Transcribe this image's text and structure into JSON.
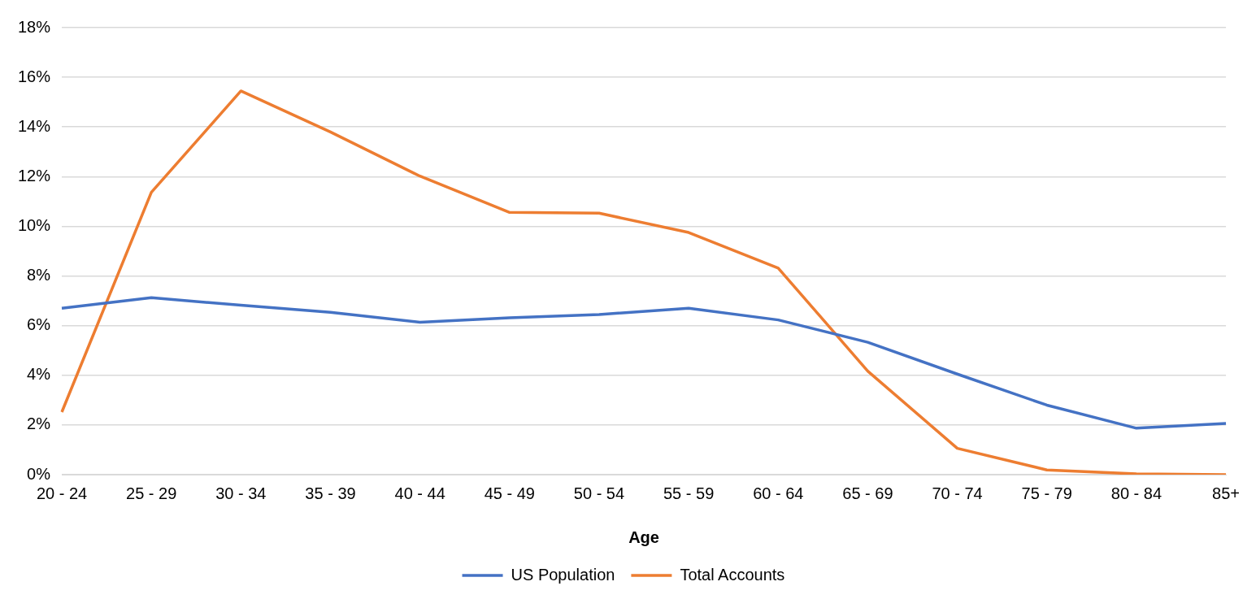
{
  "chart_data": {
    "type": "line",
    "xlabel": "Age",
    "categories": [
      "20 - 24",
      "25 - 29",
      "30 - 34",
      "35 - 39",
      "40 - 44",
      "45 - 49",
      "50 - 54",
      "55 - 59",
      "60 - 64",
      "65 - 69",
      "70 - 74",
      "75 - 79",
      "80 - 84",
      "85+"
    ],
    "series": [
      {
        "name": "US Population",
        "color": "#4472c4",
        "values": [
          6.7,
          7.13,
          6.82,
          6.54,
          6.14,
          6.32,
          6.45,
          6.7,
          6.23,
          5.33,
          4.05,
          2.8,
          1.87,
          2.06
        ]
      },
      {
        "name": "Total Accounts",
        "color": "#ed7d31",
        "values": [
          2.52,
          11.37,
          15.45,
          13.8,
          12.02,
          10.56,
          10.53,
          9.75,
          8.32,
          4.17,
          1.06,
          0.19,
          0.03,
          0.0
        ]
      }
    ],
    "ylim": [
      0,
      18
    ],
    "yticks": [
      {
        "value": 0,
        "label": "0%"
      },
      {
        "value": 2,
        "label": "2%"
      },
      {
        "value": 4,
        "label": "4%"
      },
      {
        "value": 6,
        "label": "6%"
      },
      {
        "value": 8,
        "label": "8%"
      },
      {
        "value": 10,
        "label": "10%"
      },
      {
        "value": 12,
        "label": "12%"
      },
      {
        "value": 14,
        "label": "14%"
      },
      {
        "value": 16,
        "label": "16%"
      },
      {
        "value": 18,
        "label": "18%"
      }
    ],
    "grid": "y",
    "legend": "bottom",
    "marker": "none",
    "line_style": "solid"
  }
}
